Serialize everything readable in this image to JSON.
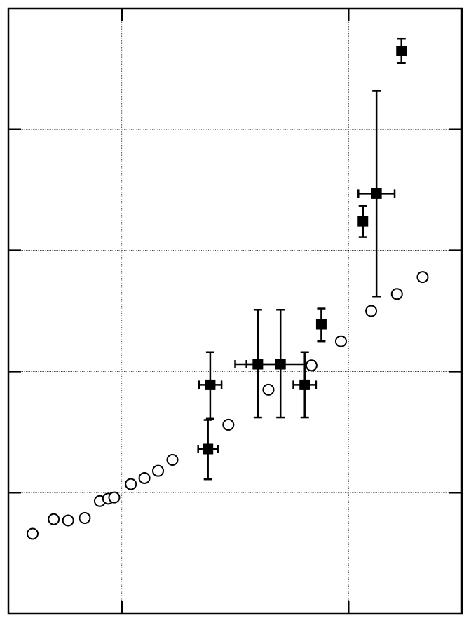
{
  "chart_data": {
    "type": "scatter",
    "title": "",
    "xlabel": "",
    "ylabel": "",
    "xlim": [
      0,
      6
    ],
    "ylim": [
      0,
      5
    ],
    "grid": true,
    "x_gridlines": [
      1.5,
      4.5
    ],
    "y_gridlines": [
      1,
      2,
      3,
      4
    ],
    "series": [
      {
        "marker": "open-circle",
        "color": "#000000",
        "points": [
          {
            "x": 0.32,
            "y": 0.66
          },
          {
            "x": 0.6,
            "y": 0.78
          },
          {
            "x": 0.79,
            "y": 0.77
          },
          {
            "x": 1.01,
            "y": 0.79
          },
          {
            "x": 1.21,
            "y": 0.93
          },
          {
            "x": 1.32,
            "y": 0.95
          },
          {
            "x": 1.4,
            "y": 0.96
          },
          {
            "x": 1.62,
            "y": 1.07
          },
          {
            "x": 1.8,
            "y": 1.12
          },
          {
            "x": 1.98,
            "y": 1.18
          },
          {
            "x": 2.17,
            "y": 1.27
          },
          {
            "x": 2.91,
            "y": 1.56
          },
          {
            "x": 3.44,
            "y": 1.85
          },
          {
            "x": 4.01,
            "y": 2.05
          },
          {
            "x": 4.4,
            "y": 2.25
          },
          {
            "x": 4.8,
            "y": 2.5
          },
          {
            "x": 5.14,
            "y": 2.64
          },
          {
            "x": 5.48,
            "y": 2.78
          }
        ]
      },
      {
        "marker": "filled-square",
        "color": "#000000",
        "points": [
          {
            "x": 2.64,
            "y": 1.36,
            "xerr": [
              0.13,
              0.13
            ],
            "yerr": [
              0.25,
              0.24
            ]
          },
          {
            "x": 2.67,
            "y": 1.89,
            "xerr": [
              0.15,
              0.15
            ],
            "yerr": [
              0.28,
              0.27
            ]
          },
          {
            "x": 3.3,
            "y": 2.06,
            "xerr": [
              0.3,
              0.3
            ],
            "yerr": [
              0.44,
              0.45
            ]
          },
          {
            "x": 3.6,
            "y": 2.06,
            "xerr": [
              0.45,
              0.45
            ],
            "yerr": [
              0.44,
              0.45
            ]
          },
          {
            "x": 3.92,
            "y": 1.89,
            "xerr": [
              0.15,
              0.15
            ],
            "yerr": [
              0.27,
              0.27
            ]
          },
          {
            "x": 4.14,
            "y": 2.39,
            "xerr": [
              0.0,
              0.0
            ],
            "yerr": [
              0.14,
              0.13
            ]
          },
          {
            "x": 4.69,
            "y": 3.24,
            "xerr": [
              0.0,
              0.0
            ],
            "yerr": [
              0.13,
              0.13
            ]
          },
          {
            "x": 4.87,
            "y": 3.47,
            "xerr": [
              0.24,
              0.24
            ],
            "yerr": [
              0.85,
              0.85
            ]
          },
          {
            "x": 5.2,
            "y": 4.65,
            "xerr": [
              0.0,
              0.0
            ],
            "yerr": [
              0.1,
              0.1
            ]
          }
        ]
      }
    ]
  }
}
